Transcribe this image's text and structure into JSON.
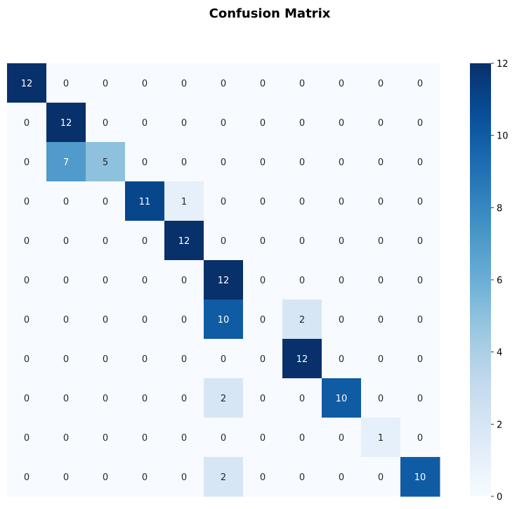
{
  "chart_data": {
    "type": "heatmap",
    "title": "Confusion Matrix",
    "xlabel": "",
    "ylabel": "",
    "matrix": [
      [
        12,
        0,
        0,
        0,
        0,
        0,
        0,
        0,
        0,
        0,
        0
      ],
      [
        0,
        12,
        0,
        0,
        0,
        0,
        0,
        0,
        0,
        0,
        0
      ],
      [
        0,
        7,
        5,
        0,
        0,
        0,
        0,
        0,
        0,
        0,
        0
      ],
      [
        0,
        0,
        0,
        11,
        1,
        0,
        0,
        0,
        0,
        0,
        0
      ],
      [
        0,
        0,
        0,
        0,
        12,
        0,
        0,
        0,
        0,
        0,
        0
      ],
      [
        0,
        0,
        0,
        0,
        0,
        12,
        0,
        0,
        0,
        0,
        0
      ],
      [
        0,
        0,
        0,
        0,
        0,
        10,
        0,
        2,
        0,
        0,
        0
      ],
      [
        0,
        0,
        0,
        0,
        0,
        0,
        0,
        12,
        0,
        0,
        0
      ],
      [
        0,
        0,
        0,
        0,
        0,
        2,
        0,
        0,
        10,
        0,
        0
      ],
      [
        0,
        0,
        0,
        0,
        0,
        0,
        0,
        0,
        0,
        1,
        0
      ],
      [
        0,
        0,
        0,
        0,
        0,
        2,
        0,
        0,
        0,
        0,
        10
      ]
    ],
    "colormap": "Blues",
    "value_range": [
      0,
      12
    ],
    "colorbar": {
      "ticks": [
        0,
        2,
        4,
        6,
        8,
        10,
        12
      ],
      "tick_labels": [
        "0",
        "2",
        "4",
        "6",
        "8",
        "10",
        "12"
      ],
      "placement": "right"
    },
    "annotations": "cell values shown",
    "grid": false
  }
}
